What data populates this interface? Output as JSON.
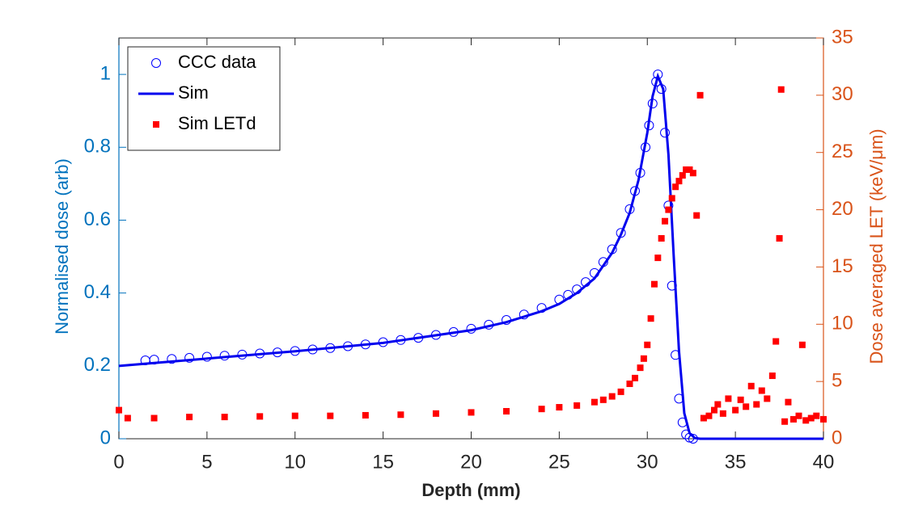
{
  "chart_data": {
    "type": "line",
    "xlabel": "Depth (mm)",
    "ylabel": "Normalised dose (arb)",
    "y2label": "Dose averaged LET (keV/μm)",
    "xlim": [
      0,
      40
    ],
    "xticks": [
      0,
      5,
      10,
      15,
      20,
      25,
      30,
      35,
      40
    ],
    "ylim": [
      0,
      1.1
    ],
    "yticks": [
      0,
      0.2,
      0.4,
      0.6,
      0.8,
      1
    ],
    "y2lim": [
      0,
      35
    ],
    "y2ticks": [
      0,
      5,
      10,
      15,
      20,
      25,
      30,
      35
    ],
    "ycolor": "#0072BD",
    "y2color": "#D95319",
    "legend": "upper left",
    "series": [
      {
        "name": "CCC data",
        "marker": "circle",
        "color": "#0000ff",
        "x": [
          1.5,
          2,
          3,
          4,
          5,
          6,
          7,
          8,
          9,
          10,
          11,
          12,
          13,
          14,
          15,
          16,
          17,
          18,
          19,
          20,
          21,
          22,
          23,
          24,
          25,
          25.5,
          26,
          26.5,
          27,
          27.5,
          28,
          28.5,
          29,
          29.3,
          29.6,
          29.9,
          30.1,
          30.3,
          30.5,
          30.6,
          30.8,
          31,
          31.2,
          31.4,
          31.6,
          31.8,
          32,
          32.2,
          32.4,
          32.6
        ],
        "values": [
          0.215,
          0.217,
          0.219,
          0.222,
          0.225,
          0.228,
          0.231,
          0.234,
          0.237,
          0.241,
          0.245,
          0.249,
          0.254,
          0.259,
          0.265,
          0.271,
          0.277,
          0.285,
          0.293,
          0.302,
          0.313,
          0.326,
          0.341,
          0.359,
          0.382,
          0.395,
          0.41,
          0.43,
          0.455,
          0.485,
          0.52,
          0.565,
          0.63,
          0.68,
          0.73,
          0.8,
          0.86,
          0.92,
          0.98,
          1.0,
          0.96,
          0.84,
          0.64,
          0.42,
          0.23,
          0.11,
          0.045,
          0.012,
          0.003,
          0
        ]
      },
      {
        "name": "Sim",
        "marker": "line",
        "color": "#0000ee",
        "x": [
          0,
          5,
          10,
          15,
          20,
          22,
          24,
          25,
          26,
          27,
          28,
          28.5,
          29,
          29.5,
          30,
          30.3,
          30.6,
          30.9,
          31.2,
          31.5,
          31.8,
          32.1,
          32.4,
          32.7,
          33,
          40
        ],
        "values": [
          0.2,
          0.22,
          0.24,
          0.263,
          0.298,
          0.32,
          0.35,
          0.37,
          0.4,
          0.44,
          0.51,
          0.56,
          0.62,
          0.71,
          0.84,
          0.94,
          0.995,
          0.96,
          0.78,
          0.5,
          0.24,
          0.07,
          0.015,
          0.002,
          0,
          0
        ]
      },
      {
        "name": "Sim LETd",
        "marker": "square",
        "color": "#ff0000",
        "axis": "y2",
        "x": [
          0,
          0.5,
          2,
          4,
          6,
          8,
          10,
          12,
          14,
          16,
          18,
          20,
          22,
          24,
          25,
          26,
          27,
          27.5,
          28,
          28.5,
          29,
          29.3,
          29.6,
          29.8,
          30,
          30.2,
          30.4,
          30.6,
          30.8,
          31,
          31.2,
          31.4,
          31.6,
          31.8,
          32,
          32.2,
          32.4,
          32.6,
          32.8,
          33,
          33.2,
          33.5,
          33.8,
          34,
          34.3,
          34.6,
          35,
          35.3,
          35.6,
          35.9,
          36.2,
          36.5,
          36.8,
          37.1,
          37.3,
          37.5,
          37.6,
          37.8,
          38,
          38.3,
          38.6,
          38.8,
          39,
          39.3,
          39.6,
          40
        ],
        "values": [
          2.5,
          1.8,
          1.8,
          1.9,
          1.9,
          1.95,
          2.0,
          2.0,
          2.05,
          2.1,
          2.2,
          2.3,
          2.4,
          2.6,
          2.75,
          2.9,
          3.2,
          3.4,
          3.7,
          4.1,
          4.8,
          5.3,
          6.2,
          7.0,
          8.2,
          10.5,
          13.5,
          15.8,
          17.5,
          19,
          20,
          21,
          22,
          22.5,
          23,
          23.5,
          23.5,
          23.2,
          19.5,
          30,
          1.8,
          2.0,
          2.5,
          3.0,
          2.2,
          3.5,
          2.5,
          3.4,
          2.8,
          4.6,
          3.0,
          4.2,
          3.5,
          5.5,
          8.5,
          17.5,
          30.5,
          1.5,
          3.2,
          1.7,
          2.0,
          8.2,
          1.6,
          1.8,
          2.0,
          1.7
        ]
      }
    ]
  }
}
